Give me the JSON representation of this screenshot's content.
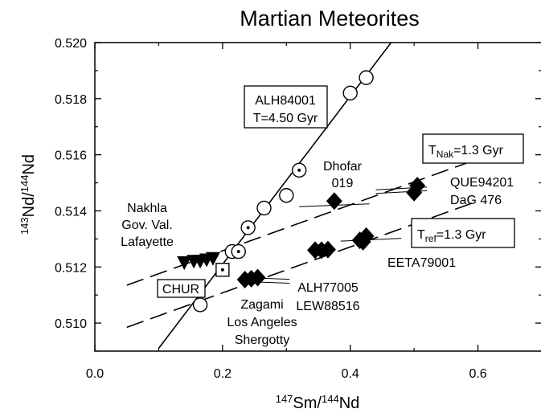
{
  "chart_data": {
    "type": "scatter",
    "title": "Martian Meteorites",
    "xlabel": {
      "mass_x": "147",
      "base_x": "Sm/",
      "mass_d": "144",
      "base_d": "Nd"
    },
    "ylabel": {
      "mass_n": "143",
      "base_n": "Nd/",
      "mass_d": "144",
      "base_d": "Nd"
    },
    "xlim": [
      0.0,
      0.7
    ],
    "ylim": [
      0.509,
      0.52
    ],
    "x_ticks": [
      {
        "value": 0.0,
        "label": "0.0"
      },
      {
        "value": 0.2,
        "label": "0.2"
      },
      {
        "value": 0.4,
        "label": "0.4"
      },
      {
        "value": 0.6,
        "label": "0.6"
      }
    ],
    "y_ticks": [
      {
        "value": 0.51,
        "label": "0.510"
      },
      {
        "value": 0.512,
        "label": "0.512"
      },
      {
        "value": 0.514,
        "label": "0.514"
      },
      {
        "value": 0.516,
        "label": "0.516"
      },
      {
        "value": 0.518,
        "label": "0.518"
      },
      {
        "value": 0.52,
        "label": "0.520"
      }
    ],
    "lines": [
      {
        "style": "solid",
        "x": [
          0.1,
          0.464
        ],
        "y": [
          0.5091,
          0.52
        ]
      },
      {
        "style": "dashed",
        "x": [
          0.05,
          0.6
        ],
        "y": [
          0.51135,
          0.51585
        ]
      },
      {
        "style": "dashed",
        "x": [
          0.05,
          0.6
        ],
        "y": [
          0.50985,
          0.51435
        ]
      }
    ],
    "series": [
      {
        "marker": "open-circle",
        "x": [
          0.165,
          0.215,
          0.265,
          0.3,
          0.4,
          0.425
        ],
        "y": [
          0.51065,
          0.51255,
          0.5141,
          0.51455,
          0.5182,
          0.51875
        ]
      },
      {
        "marker": "dotted-circle",
        "x": [
          0.225,
          0.24,
          0.32
        ],
        "y": [
          0.51255,
          0.5134,
          0.51545
        ]
      },
      {
        "marker": "dotted-square",
        "x": [
          0.2
        ],
        "y": [
          0.5119
        ]
      },
      {
        "marker": "filled-triangle-down",
        "x": [
          0.14,
          0.155,
          0.165,
          0.175,
          0.185
        ],
        "y": [
          0.51215,
          0.5122,
          0.5122,
          0.51225,
          0.5123
        ]
      },
      {
        "marker": "filled-diamond",
        "x": [
          0.235,
          0.245,
          0.255,
          0.345,
          0.355,
          0.365,
          0.375,
          0.415,
          0.42,
          0.425,
          0.5,
          0.505
        ],
        "y": [
          0.51155,
          0.51158,
          0.51162,
          0.5126,
          0.5126,
          0.51262,
          0.51435,
          0.51295,
          0.5129,
          0.5131,
          0.51465,
          0.5149
        ]
      }
    ],
    "error_lines": [
      {
        "x": [
          0.235,
          0.305
        ],
        "y": [
          0.51148,
          0.51142
        ]
      },
      {
        "x": [
          0.235,
          0.305
        ],
        "y": [
          0.51162,
          0.51156
        ]
      },
      {
        "x": [
          0.32,
          0.43
        ],
        "y": [
          0.51415,
          0.51425
        ]
      },
      {
        "x": [
          0.44,
          0.52
        ],
        "y": [
          0.51462,
          0.51472
        ]
      },
      {
        "x": [
          0.44,
          0.52
        ],
        "y": [
          0.51475,
          0.51485
        ]
      },
      {
        "x": [
          0.385,
          0.48
        ],
        "y": [
          0.51292,
          0.51302
        ]
      }
    ],
    "annotations": {
      "alh84001_line1": "ALH84001",
      "alh84001_line2": "T=4.50 Gyr",
      "t_nak_main": "T",
      "t_nak_sub": "Nak",
      "t_nak_rest": "=1.3 Gyr",
      "t_ref_main": "T",
      "t_ref_sub": "ref",
      "t_ref_rest": "=1.3 Gyr",
      "dhofar_line1": "Dhofar",
      "dhofar_line2": "019",
      "que_line1": "QUE94201",
      "que_line2": "DaG 476",
      "nakhla_line1": "Nakhla",
      "nakhla_line2": "Gov. Val.",
      "nakhla_line3": "Lafayette",
      "chur": "CHUR",
      "eeta": "EETA79001",
      "alh77_line1": "ALH77005",
      "alh77_line2": "LEW88516",
      "zagami_line1": "Zagami",
      "zagami_line2": "Los Angeles",
      "zagami_line3": "Shergotty"
    }
  }
}
